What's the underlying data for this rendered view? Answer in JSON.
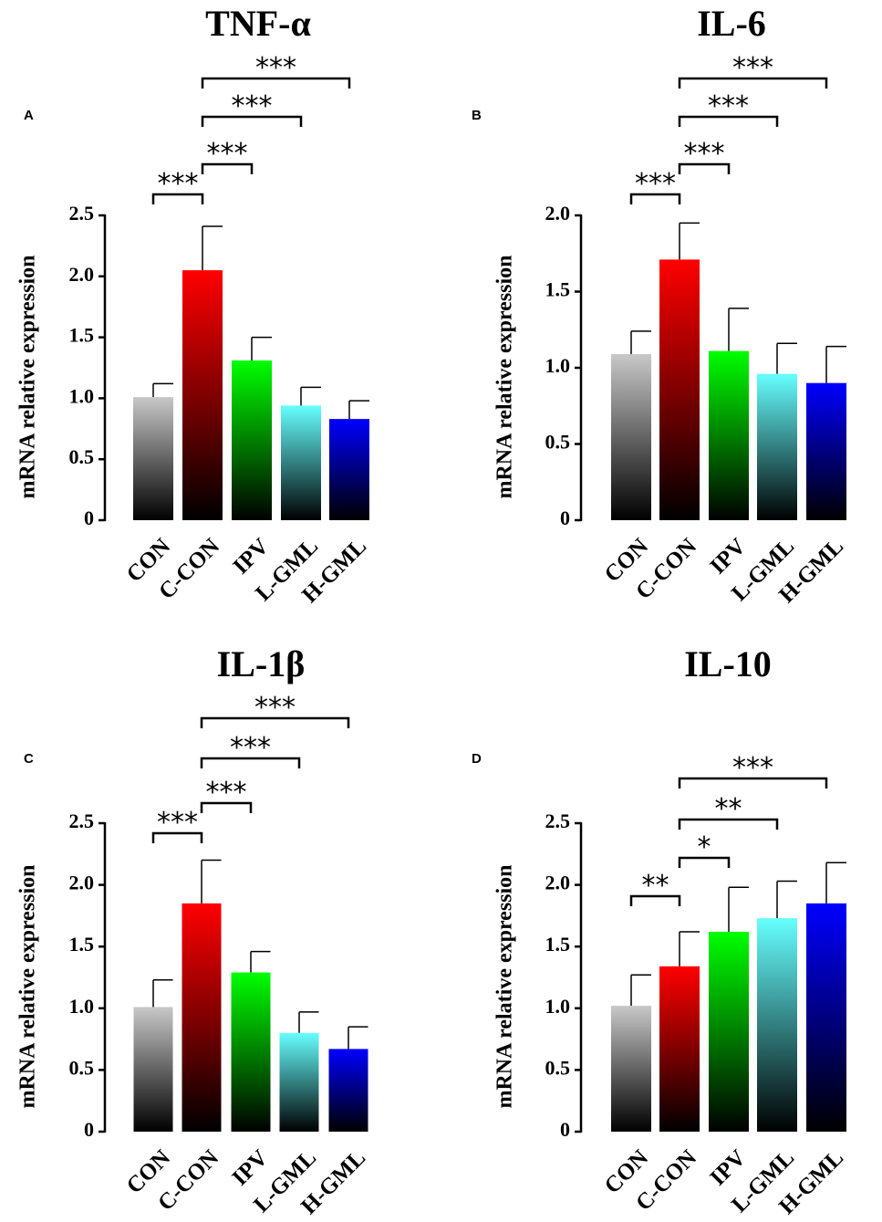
{
  "chart_data": [
    {
      "panel": "A",
      "title": "TNF-α",
      "type": "bar",
      "ylabel": "mRNA relative expression",
      "ylim": [
        0,
        2.5
      ],
      "yticks": [
        "0",
        "0.5",
        "1.0",
        "1.5",
        "2.0",
        "2.5"
      ],
      "categories": [
        "CON",
        "C-CON",
        "IPV",
        "L-GML",
        "H-GML"
      ],
      "values": [
        1.01,
        2.05,
        1.31,
        0.94,
        0.83
      ],
      "errors": [
        0.11,
        0.36,
        0.19,
        0.15,
        0.15
      ],
      "significance": [
        {
          "from": 0,
          "to": 1,
          "label": "***"
        },
        {
          "from": 1,
          "to": 2,
          "label": "***"
        },
        {
          "from": 1,
          "to": 3,
          "label": "***"
        },
        {
          "from": 1,
          "to": 4,
          "label": "***"
        }
      ]
    },
    {
      "panel": "B",
      "title": "IL-6",
      "type": "bar",
      "ylabel": "mRNA relative expression",
      "ylim": [
        0,
        2.0
      ],
      "yticks": [
        "0",
        "0.5",
        "1.0",
        "1.5",
        "2.0"
      ],
      "categories": [
        "CON",
        "C-CON",
        "IPV",
        "L-GML",
        "H-GML"
      ],
      "values": [
        1.09,
        1.71,
        1.11,
        0.96,
        0.9
      ],
      "errors": [
        0.15,
        0.24,
        0.28,
        0.2,
        0.24
      ],
      "significance": [
        {
          "from": 0,
          "to": 1,
          "label": "***"
        },
        {
          "from": 1,
          "to": 2,
          "label": "***"
        },
        {
          "from": 1,
          "to": 3,
          "label": "***"
        },
        {
          "from": 1,
          "to": 4,
          "label": "***"
        }
      ]
    },
    {
      "panel": "C",
      "title": "IL-1β",
      "type": "bar",
      "ylabel": "mRNA relative expression",
      "ylim": [
        0,
        2.5
      ],
      "yticks": [
        "0",
        "0.5",
        "1.0",
        "1.5",
        "2.0",
        "2.5"
      ],
      "categories": [
        "CON",
        "C-CON",
        "IPV",
        "L-GML",
        "H-GML"
      ],
      "values": [
        1.01,
        1.85,
        1.29,
        0.8,
        0.67
      ],
      "errors": [
        0.22,
        0.35,
        0.17,
        0.17,
        0.18
      ],
      "significance": [
        {
          "from": 0,
          "to": 1,
          "label": "***"
        },
        {
          "from": 1,
          "to": 2,
          "label": "***"
        },
        {
          "from": 1,
          "to": 3,
          "label": "***"
        },
        {
          "from": 1,
          "to": 4,
          "label": "***"
        }
      ]
    },
    {
      "panel": "D",
      "title": "IL-10",
      "type": "bar",
      "ylabel": "mRNA relative expression",
      "ylim": [
        0,
        2.5
      ],
      "yticks": [
        "0",
        "0.5",
        "1.0",
        "1.5",
        "2.0",
        "2.5"
      ],
      "categories": [
        "CON",
        "C-CON",
        "IPV",
        "L-GML",
        "H-GML"
      ],
      "values": [
        1.02,
        1.34,
        1.62,
        1.73,
        1.85
      ],
      "errors": [
        0.25,
        0.28,
        0.36,
        0.3,
        0.33
      ],
      "significance": [
        {
          "from": 0,
          "to": 1,
          "label": "**"
        },
        {
          "from": 1,
          "to": 2,
          "label": "*"
        },
        {
          "from": 1,
          "to": 3,
          "label": "**"
        },
        {
          "from": 1,
          "to": 4,
          "label": "***"
        }
      ]
    }
  ],
  "colors": {
    "CON": "#c8c8c8",
    "C-CON": "#ff0000",
    "IPV": "#00ff00",
    "L-GML": "#66ffff",
    "H-GML": "#0000ff",
    "bottom": "#000000",
    "axis": "#000000"
  }
}
